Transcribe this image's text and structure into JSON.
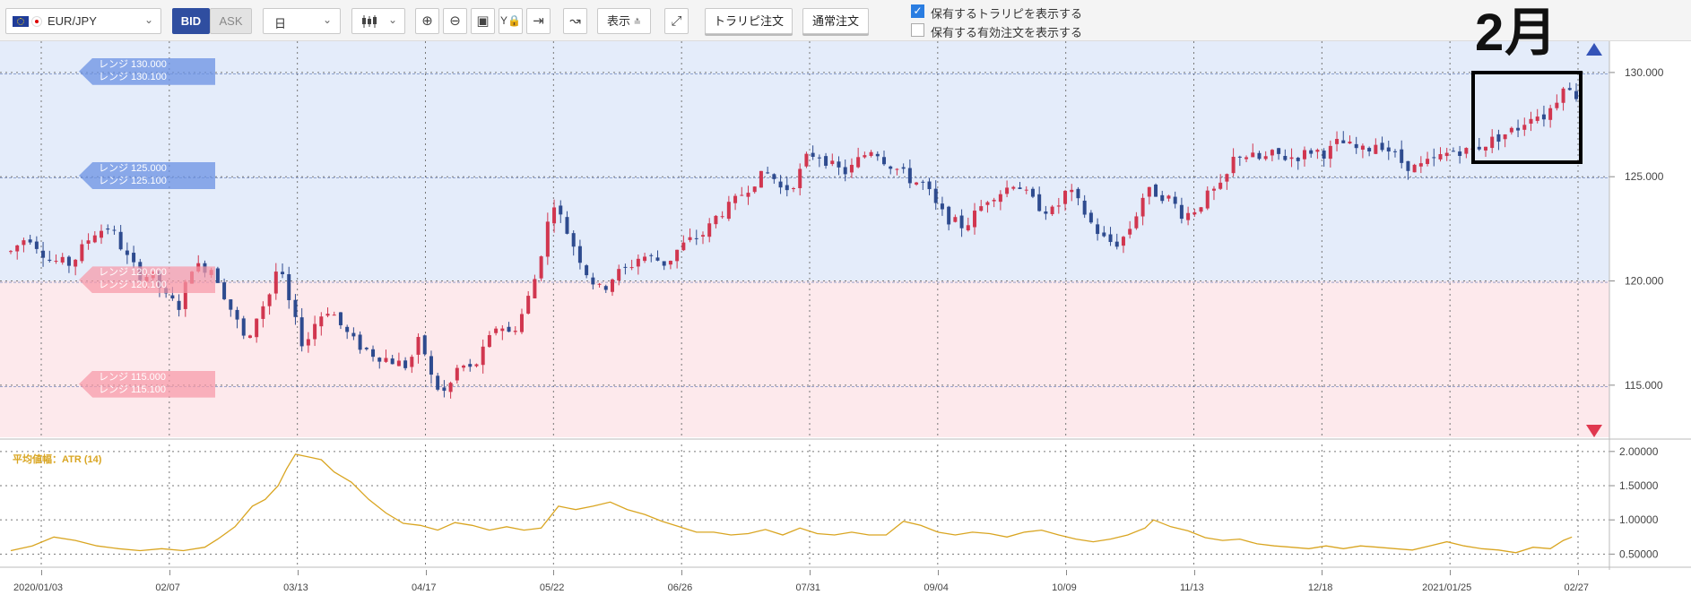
{
  "toolbar": {
    "symbol": "EUR/JPY",
    "bid_label": "BID",
    "ask_label": "ASK",
    "timeframe": "日",
    "display_label": "表示",
    "trapi_order_label": "トラリピ注文",
    "normal_order_label": "通常注文",
    "show_trapi_label": "保有するトラリピを表示する",
    "show_trapi_checked": true,
    "show_orders_label": "保有する有効注文を表示する",
    "show_orders_checked": false
  },
  "annotation": {
    "month_label": "2月"
  },
  "indicator": {
    "label": "平均値幅：ATR (14)",
    "color": "#d9a521"
  },
  "range_tags": [
    {
      "line1": "レンジ 130.000",
      "line2": "レンジ 130.100",
      "kind": "buy"
    },
    {
      "line1": "レンジ 125.000",
      "line2": "レンジ 125.100",
      "kind": "buy"
    },
    {
      "line1": "レンジ 120.000",
      "line2": "レンジ 120.100",
      "kind": "sell"
    },
    {
      "line1": "レンジ 115.000",
      "line2": "レンジ 115.100",
      "kind": "sell"
    }
  ],
  "chart_data": [
    {
      "type": "candlestick",
      "symbol": "EUR/JPY",
      "x_ticks": [
        "2020/01/03",
        "02/07",
        "03/13",
        "04/17",
        "05/22",
        "06/26",
        "07/31",
        "09/04",
        "10/09",
        "11/13",
        "12/18",
        "2021/01/25",
        "02/27"
      ],
      "y_ticks": [
        "115.000",
        "120.000",
        "125.000",
        "130.000"
      ],
      "ylim": [
        112.5,
        131.5
      ],
      "bands": [
        {
          "from": 120.0,
          "to": 131.5,
          "color": "#e4ecfa"
        },
        {
          "from": 112.5,
          "to": 120.0,
          "color": "#fde9ec"
        }
      ],
      "up_color": "#d1364f",
      "down_color": "#2e4b8f",
      "close_path": [
        [
          0,
          121.4
        ],
        [
          4,
          122.2
        ],
        [
          9,
          121.0
        ],
        [
          14,
          120.8
        ],
        [
          19,
          122.3
        ],
        [
          23,
          122.6
        ],
        [
          27,
          121.1
        ],
        [
          30,
          120.3
        ],
        [
          33,
          120.2
        ],
        [
          36,
          119.2
        ],
        [
          39,
          118.8
        ],
        [
          42,
          120.7
        ],
        [
          47,
          120.6
        ],
        [
          50,
          119.1
        ],
        [
          53,
          117.8
        ],
        [
          55,
          116.8
        ],
        [
          57,
          118.3
        ],
        [
          60,
          119.4
        ],
        [
          62,
          120.8
        ],
        [
          65,
          118.6
        ],
        [
          68,
          116.8
        ],
        [
          71,
          118.2
        ],
        [
          74,
          118.7
        ],
        [
          77,
          117.7
        ],
        [
          80,
          117.0
        ],
        [
          84,
          116.5
        ],
        [
          88,
          116.2
        ],
        [
          92,
          115.9
        ],
        [
          95,
          117.3
        ],
        [
          98,
          115.0
        ],
        [
          101,
          114.6
        ],
        [
          104,
          116.0
        ],
        [
          107,
          115.7
        ],
        [
          110,
          116.8
        ],
        [
          113,
          118.0
        ],
        [
          116,
          117.4
        ],
        [
          119,
          118.6
        ],
        [
          122,
          120.4
        ],
        [
          124,
          122.4
        ],
        [
          126,
          123.8
        ],
        [
          128,
          122.8
        ],
        [
          131,
          121.5
        ],
        [
          134,
          120.2
        ],
        [
          137,
          119.5
        ],
        [
          140,
          120.3
        ],
        [
          143,
          120.6
        ],
        [
          146,
          121.2
        ],
        [
          149,
          121.1
        ],
        [
          152,
          120.8
        ],
        [
          155,
          121.6
        ],
        [
          158,
          122.0
        ],
        [
          161,
          122.3
        ],
        [
          164,
          123.2
        ],
        [
          167,
          123.6
        ],
        [
          170,
          124.3
        ],
        [
          173,
          124.9
        ],
        [
          176,
          125.2
        ],
        [
          179,
          124.3
        ],
        [
          182,
          124.8
        ],
        [
          185,
          126.1
        ],
        [
          188,
          126.0
        ],
        [
          191,
          125.4
        ],
        [
          194,
          125.2
        ],
        [
          197,
          125.9
        ],
        [
          200,
          126.4
        ],
        [
          203,
          125.7
        ],
        [
          206,
          125.3
        ],
        [
          209,
          124.8
        ],
        [
          212,
          124.6
        ],
        [
          215,
          123.4
        ],
        [
          218,
          122.9
        ],
        [
          221,
          122.6
        ],
        [
          224,
          123.3
        ],
        [
          227,
          124.1
        ],
        [
          230,
          124.3
        ],
        [
          233,
          124.8
        ],
        [
          236,
          124.0
        ],
        [
          239,
          123.5
        ],
        [
          242,
          123.3
        ],
        [
          245,
          124.4
        ],
        [
          248,
          123.6
        ],
        [
          251,
          122.6
        ],
        [
          254,
          121.9
        ],
        [
          257,
          121.8
        ],
        [
          260,
          122.7
        ],
        [
          263,
          124.3
        ],
        [
          266,
          124.2
        ],
        [
          269,
          123.9
        ],
        [
          272,
          123.1
        ],
        [
          275,
          123.5
        ],
        [
          278,
          124.2
        ],
        [
          281,
          124.5
        ],
        [
          284,
          126.1
        ],
        [
          287,
          126.0
        ],
        [
          290,
          125.8
        ],
        [
          293,
          126.1
        ],
        [
          296,
          125.9
        ],
        [
          299,
          126.0
        ],
        [
          302,
          126.3
        ],
        [
          305,
          126.1
        ],
        [
          308,
          126.7
        ],
        [
          311,
          126.4
        ],
        [
          314,
          126.2
        ],
        [
          317,
          126.7
        ],
        [
          320,
          126.2
        ],
        [
          323,
          125.6
        ],
        [
          326,
          125.4
        ],
        [
          329,
          125.7
        ],
        [
          332,
          126.0
        ],
        [
          335,
          126.3
        ],
        [
          338,
          126.2
        ],
        [
          341,
          126.5
        ],
        [
          344,
          126.8
        ],
        [
          347,
          127.1
        ],
        [
          350,
          127.4
        ],
        [
          353,
          128.1
        ],
        [
          355,
          127.8
        ],
        [
          358,
          128.5
        ],
        [
          360,
          129.5
        ],
        [
          362,
          128.9
        ]
      ],
      "x_min": 0,
      "x_max": 363
    },
    {
      "type": "line",
      "title": "平均値幅：ATR (14)",
      "y_ticks": [
        "0.50000",
        "1.00000",
        "1.50000",
        "2.00000"
      ],
      "ylim": [
        0.4,
        2.05
      ],
      "color": "#d9a521",
      "points": [
        [
          0,
          0.55
        ],
        [
          5,
          0.62
        ],
        [
          10,
          0.75
        ],
        [
          15,
          0.7
        ],
        [
          20,
          0.62
        ],
        [
          25,
          0.58
        ],
        [
          30,
          0.55
        ],
        [
          35,
          0.58
        ],
        [
          40,
          0.55
        ],
        [
          45,
          0.6
        ],
        [
          48,
          0.72
        ],
        [
          52,
          0.9
        ],
        [
          56,
          1.2
        ],
        [
          59,
          1.3
        ],
        [
          62,
          1.5
        ],
        [
          64,
          1.75
        ],
        [
          66,
          1.96
        ],
        [
          69,
          1.92
        ],
        [
          72,
          1.88
        ],
        [
          75,
          1.7
        ],
        [
          79,
          1.55
        ],
        [
          83,
          1.3
        ],
        [
          87,
          1.1
        ],
        [
          91,
          0.95
        ],
        [
          95,
          0.92
        ],
        [
          99,
          0.85
        ],
        [
          103,
          0.96
        ],
        [
          107,
          0.92
        ],
        [
          111,
          0.85
        ],
        [
          115,
          0.9
        ],
        [
          119,
          0.85
        ],
        [
          123,
          0.88
        ],
        [
          127,
          1.2
        ],
        [
          131,
          1.15
        ],
        [
          135,
          1.2
        ],
        [
          139,
          1.26
        ],
        [
          143,
          1.15
        ],
        [
          147,
          1.08
        ],
        [
          151,
          0.98
        ],
        [
          155,
          0.9
        ],
        [
          159,
          0.82
        ],
        [
          163,
          0.82
        ],
        [
          167,
          0.78
        ],
        [
          171,
          0.8
        ],
        [
          175,
          0.86
        ],
        [
          179,
          0.78
        ],
        [
          183,
          0.88
        ],
        [
          187,
          0.8
        ],
        [
          191,
          0.78
        ],
        [
          195,
          0.82
        ],
        [
          199,
          0.78
        ],
        [
          203,
          0.78
        ],
        [
          207,
          0.98
        ],
        [
          211,
          0.92
        ],
        [
          215,
          0.82
        ],
        [
          219,
          0.78
        ],
        [
          223,
          0.82
        ],
        [
          227,
          0.8
        ],
        [
          231,
          0.75
        ],
        [
          235,
          0.82
        ],
        [
          239,
          0.85
        ],
        [
          243,
          0.78
        ],
        [
          247,
          0.72
        ],
        [
          251,
          0.68
        ],
        [
          255,
          0.72
        ],
        [
          259,
          0.78
        ],
        [
          263,
          0.88
        ],
        [
          265,
          1.0
        ],
        [
          269,
          0.9
        ],
        [
          273,
          0.84
        ],
        [
          277,
          0.74
        ],
        [
          281,
          0.7
        ],
        [
          285,
          0.72
        ],
        [
          289,
          0.65
        ],
        [
          293,
          0.62
        ],
        [
          297,
          0.6
        ],
        [
          301,
          0.58
        ],
        [
          305,
          0.62
        ],
        [
          309,
          0.58
        ],
        [
          313,
          0.62
        ],
        [
          317,
          0.6
        ],
        [
          321,
          0.58
        ],
        [
          325,
          0.56
        ],
        [
          329,
          0.62
        ],
        [
          333,
          0.68
        ],
        [
          337,
          0.62
        ],
        [
          341,
          0.58
        ],
        [
          345,
          0.56
        ],
        [
          349,
          0.52
        ],
        [
          353,
          0.6
        ],
        [
          357,
          0.58
        ],
        [
          360,
          0.7
        ],
        [
          362,
          0.75
        ]
      ],
      "x_min": 0,
      "x_max": 363
    }
  ]
}
